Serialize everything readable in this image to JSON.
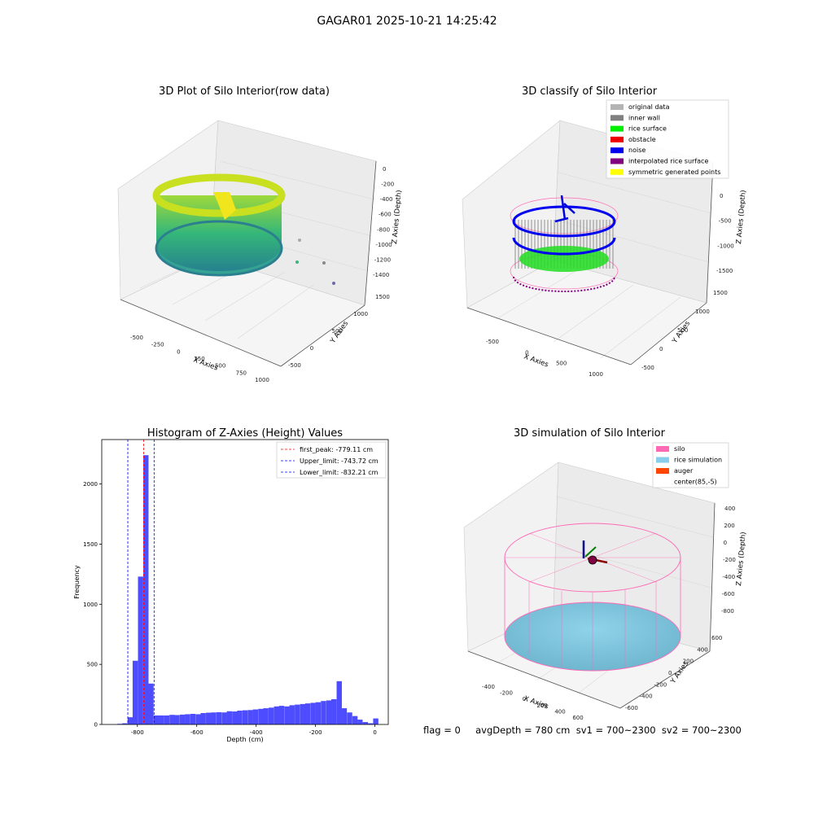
{
  "suptitle": "GAGAR01 2025-10-21 14:25:42",
  "status_text": "flag = 0     avgDepth = 780 cm  sv1 = 700~2300  sv2 = 700~2300",
  "panels": {
    "raw": {
      "title": "3D Plot of Silo Interior(row data)",
      "xlabel": "X Axies",
      "ylabel": "Y Axies",
      "zlabel": "Z Axies (Depth)",
      "xticks": [
        "-500",
        "-250",
        "0",
        "250",
        "500",
        "750",
        "1000"
      ],
      "yticks": [
        "-500",
        "0",
        "500",
        "1000",
        "1500"
      ],
      "zticks": [
        "0",
        "-200",
        "-400",
        "-600",
        "-800",
        "-1000",
        "-1200",
        "-1400"
      ]
    },
    "classify": {
      "title": "3D classify of Silo Interior",
      "xlabel": "X Axies",
      "ylabel": "Y Axies",
      "zlabel": "Z Axies (Depth)",
      "xticks": [
        "-500",
        "0",
        "500",
        "1000"
      ],
      "yticks": [
        "-500",
        "0",
        "500",
        "1000",
        "1500"
      ],
      "zticks": [
        "0",
        "-500",
        "-1000",
        "-1500"
      ],
      "legend": [
        {
          "label": "original data",
          "color": "#b4b4b4"
        },
        {
          "label": "inner wall",
          "color": "#808080"
        },
        {
          "label": "rice surface",
          "color": "#00ee00"
        },
        {
          "label": "obstacle",
          "color": "#ee0000"
        },
        {
          "label": "noise",
          "color": "#0000ee"
        },
        {
          "label": "interpolated rice surface",
          "color": "#800080"
        },
        {
          "label": "symmetric generated points",
          "color": "#ffff00"
        }
      ]
    },
    "simulation": {
      "title": "3D simulation of Silo Interior",
      "xlabel": "X Axies",
      "ylabel": "Y Axies",
      "zlabel": "Z Axies (Depth)",
      "xticks": [
        "-400",
        "-200",
        "0",
        "200",
        "400",
        "600"
      ],
      "yticks": [
        "600",
        "400",
        "200",
        "0",
        "-200",
        "-400",
        "-600"
      ],
      "zticks": [
        "400",
        "200",
        "0",
        "-200",
        "-400",
        "-600",
        "-800"
      ],
      "legend": [
        {
          "label": "silo",
          "color": "#ff69b4"
        },
        {
          "label": "rice simulation",
          "color": "#87ceeb"
        },
        {
          "label": "auger",
          "color": "#ff4500"
        },
        {
          "label": "center(85,-5)",
          "color": ""
        }
      ]
    }
  },
  "chart_data": {
    "type": "bar",
    "title": "Histogram of Z-Axies (Height) Values",
    "xlabel": "Depth (cm)",
    "ylabel": "Frequency",
    "xlim": [
      -920,
      45
    ],
    "ylim": [
      0,
      2370
    ],
    "xticks": [
      -800,
      -600,
      -400,
      -200,
      0
    ],
    "yticks": [
      0,
      500,
      1000,
      1500,
      2000
    ],
    "bin_width": 17.6,
    "bins": [
      [
        -868,
        5
      ],
      [
        -851,
        10
      ],
      [
        -833,
        60
      ],
      [
        -816,
        530
      ],
      [
        -798,
        1230
      ],
      [
        -780,
        2240
      ],
      [
        -763,
        340
      ],
      [
        -745,
        75
      ],
      [
        -728,
        75
      ],
      [
        -710,
        75
      ],
      [
        -692,
        80
      ],
      [
        -675,
        78
      ],
      [
        -657,
        82
      ],
      [
        -640,
        85
      ],
      [
        -622,
        88
      ],
      [
        -604,
        85
      ],
      [
        -587,
        95
      ],
      [
        -569,
        98
      ],
      [
        -552,
        100
      ],
      [
        -534,
        102
      ],
      [
        -516,
        100
      ],
      [
        -499,
        110
      ],
      [
        -481,
        108
      ],
      [
        -464,
        115
      ],
      [
        -446,
        118
      ],
      [
        -428,
        120
      ],
      [
        -411,
        125
      ],
      [
        -393,
        130
      ],
      [
        -376,
        135
      ],
      [
        -358,
        140
      ],
      [
        -340,
        150
      ],
      [
        -323,
        155
      ],
      [
        -305,
        150
      ],
      [
        -288,
        160
      ],
      [
        -270,
        165
      ],
      [
        -252,
        170
      ],
      [
        -235,
        175
      ],
      [
        -217,
        180
      ],
      [
        -200,
        185
      ],
      [
        -182,
        195
      ],
      [
        -164,
        200
      ],
      [
        -147,
        210
      ],
      [
        -129,
        360
      ],
      [
        -112,
        135
      ],
      [
        -94,
        100
      ],
      [
        -76,
        70
      ],
      [
        -59,
        40
      ],
      [
        -41,
        20
      ],
      [
        -24,
        10
      ],
      [
        -6,
        50
      ]
    ],
    "lines": [
      {
        "label": "first_peak: -779.11 cm",
        "x": -779.11,
        "color": "#ff0000"
      },
      {
        "label": "Upper_limit: -743.72 cm",
        "x": -743.72,
        "color": "#0000ff"
      },
      {
        "label": "Lower_limit: -832.21 cm",
        "x": -832.21,
        "color": "#0000ff"
      }
    ],
    "bar_color": "#4d4dff"
  }
}
